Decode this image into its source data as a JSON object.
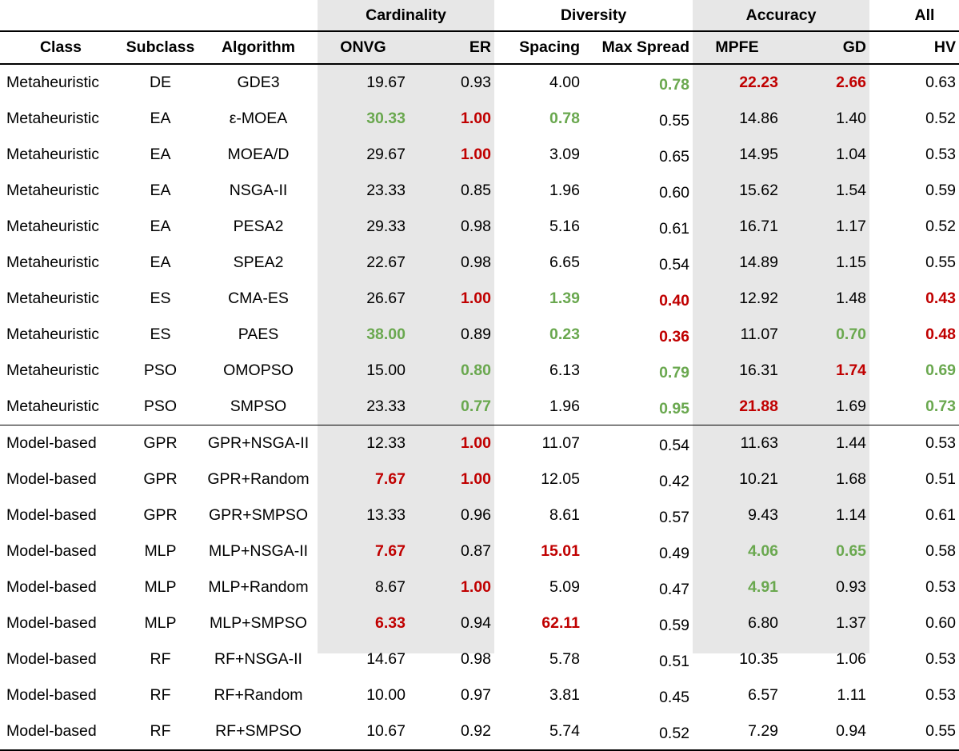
{
  "header": {
    "groups": {
      "cardinality": "Cardinality",
      "diversity": "Diversity",
      "accuracy": "Accuracy",
      "all": "All"
    },
    "columns": {
      "class": "Class",
      "subclass": "Subclass",
      "algorithm": "Algorithm",
      "onvg": "ONVG",
      "er": "ER",
      "spacing": "Spacing",
      "max_spread": "Max Spread",
      "mpfe": "MPFE",
      "gd": "GD",
      "hv": "HV"
    }
  },
  "colors": {
    "best": "#6aa84f",
    "worst": "#c00000",
    "shade": "#e7e7e7"
  },
  "rows": [
    {
      "class": "Metaheuristic",
      "subclass": "DE",
      "algorithm": "GDE3",
      "onvg": {
        "v": "19.67"
      },
      "er": {
        "v": "0.93"
      },
      "spacing": {
        "v": "4.00"
      },
      "max_spread": {
        "v": "0.78",
        "s": "best"
      },
      "mpfe": {
        "v": "22.23",
        "s": "worst"
      },
      "gd": {
        "v": "2.66",
        "s": "worst"
      },
      "hv": {
        "v": "0.63"
      }
    },
    {
      "class": "Metaheuristic",
      "subclass": "EA",
      "algorithm": "ε-MOEA",
      "onvg": {
        "v": "30.33",
        "s": "best"
      },
      "er": {
        "v": "1.00",
        "s": "worst"
      },
      "spacing": {
        "v": "0.78",
        "s": "best"
      },
      "max_spread": {
        "v": "0.55"
      },
      "mpfe": {
        "v": "14.86"
      },
      "gd": {
        "v": "1.40"
      },
      "hv": {
        "v": "0.52"
      }
    },
    {
      "class": "Metaheuristic",
      "subclass": "EA",
      "algorithm": "MOEA/D",
      "onvg": {
        "v": "29.67"
      },
      "er": {
        "v": "1.00",
        "s": "worst"
      },
      "spacing": {
        "v": "3.09"
      },
      "max_spread": {
        "v": "0.65"
      },
      "mpfe": {
        "v": "14.95"
      },
      "gd": {
        "v": "1.04"
      },
      "hv": {
        "v": "0.53"
      }
    },
    {
      "class": "Metaheuristic",
      "subclass": "EA",
      "algorithm": "NSGA-II",
      "onvg": {
        "v": "23.33"
      },
      "er": {
        "v": "0.85"
      },
      "spacing": {
        "v": "1.96"
      },
      "max_spread": {
        "v": "0.60"
      },
      "mpfe": {
        "v": "15.62"
      },
      "gd": {
        "v": "1.54"
      },
      "hv": {
        "v": "0.59"
      }
    },
    {
      "class": "Metaheuristic",
      "subclass": "EA",
      "algorithm": "PESA2",
      "onvg": {
        "v": "29.33"
      },
      "er": {
        "v": "0.98"
      },
      "spacing": {
        "v": "5.16"
      },
      "max_spread": {
        "v": "0.61"
      },
      "mpfe": {
        "v": "16.71"
      },
      "gd": {
        "v": "1.17"
      },
      "hv": {
        "v": "0.52"
      }
    },
    {
      "class": "Metaheuristic",
      "subclass": "EA",
      "algorithm": "SPEA2",
      "onvg": {
        "v": "22.67"
      },
      "er": {
        "v": "0.98"
      },
      "spacing": {
        "v": "6.65"
      },
      "max_spread": {
        "v": "0.54"
      },
      "mpfe": {
        "v": "14.89"
      },
      "gd": {
        "v": "1.15"
      },
      "hv": {
        "v": "0.55"
      }
    },
    {
      "class": "Metaheuristic",
      "subclass": "ES",
      "algorithm": "CMA-ES",
      "onvg": {
        "v": "26.67"
      },
      "er": {
        "v": "1.00",
        "s": "worst"
      },
      "spacing": {
        "v": "1.39",
        "s": "best"
      },
      "max_spread": {
        "v": "0.40",
        "s": "worst"
      },
      "mpfe": {
        "v": "12.92"
      },
      "gd": {
        "v": "1.48"
      },
      "hv": {
        "v": "0.43",
        "s": "worst"
      }
    },
    {
      "class": "Metaheuristic",
      "subclass": "ES",
      "algorithm": "PAES",
      "onvg": {
        "v": "38.00",
        "s": "best"
      },
      "er": {
        "v": "0.89"
      },
      "spacing": {
        "v": "0.23",
        "s": "best"
      },
      "max_spread": {
        "v": "0.36",
        "s": "worst"
      },
      "mpfe": {
        "v": "11.07"
      },
      "gd": {
        "v": "0.70",
        "s": "best"
      },
      "hv": {
        "v": "0.48",
        "s": "worst"
      }
    },
    {
      "class": "Metaheuristic",
      "subclass": "PSO",
      "algorithm": "OMOPSO",
      "onvg": {
        "v": "15.00"
      },
      "er": {
        "v": "0.80",
        "s": "best"
      },
      "spacing": {
        "v": "6.13"
      },
      "max_spread": {
        "v": "0.79",
        "s": "best"
      },
      "mpfe": {
        "v": "16.31"
      },
      "gd": {
        "v": "1.74",
        "s": "worst"
      },
      "hv": {
        "v": "0.69",
        "s": "best"
      }
    },
    {
      "class": "Metaheuristic",
      "subclass": "PSO",
      "algorithm": "SMPSO",
      "onvg": {
        "v": "23.33"
      },
      "er": {
        "v": "0.77",
        "s": "best"
      },
      "spacing": {
        "v": "1.96"
      },
      "max_spread": {
        "v": "0.95",
        "s": "best"
      },
      "mpfe": {
        "v": "21.88",
        "s": "worst"
      },
      "gd": {
        "v": "1.69"
      },
      "hv": {
        "v": "0.73",
        "s": "best"
      }
    },
    {
      "class": "Model-based",
      "subclass": "GPR",
      "algorithm": "GPR+NSGA-II",
      "sep": true,
      "onvg": {
        "v": "12.33"
      },
      "er": {
        "v": "1.00",
        "s": "worst"
      },
      "spacing": {
        "v": "11.07"
      },
      "max_spread": {
        "v": "0.54"
      },
      "mpfe": {
        "v": "11.63"
      },
      "gd": {
        "v": "1.44"
      },
      "hv": {
        "v": "0.53"
      }
    },
    {
      "class": "Model-based",
      "subclass": "GPR",
      "algorithm": "GPR+Random",
      "onvg": {
        "v": "7.67",
        "s": "worst"
      },
      "er": {
        "v": "1.00",
        "s": "worst"
      },
      "spacing": {
        "v": "12.05"
      },
      "max_spread": {
        "v": "0.42"
      },
      "mpfe": {
        "v": "10.21"
      },
      "gd": {
        "v": "1.68"
      },
      "hv": {
        "v": "0.51"
      }
    },
    {
      "class": "Model-based",
      "subclass": "GPR",
      "algorithm": "GPR+SMPSO",
      "onvg": {
        "v": "13.33"
      },
      "er": {
        "v": "0.96"
      },
      "spacing": {
        "v": "8.61"
      },
      "max_spread": {
        "v": "0.57"
      },
      "mpfe": {
        "v": "9.43"
      },
      "gd": {
        "v": "1.14"
      },
      "hv": {
        "v": "0.61"
      }
    },
    {
      "class": "Model-based",
      "subclass": "MLP",
      "algorithm": "MLP+NSGA-II",
      "onvg": {
        "v": "7.67",
        "s": "worst"
      },
      "er": {
        "v": "0.87"
      },
      "spacing": {
        "v": "15.01",
        "s": "worst"
      },
      "max_spread": {
        "v": "0.49"
      },
      "mpfe": {
        "v": "4.06",
        "s": "best"
      },
      "gd": {
        "v": "0.65",
        "s": "best"
      },
      "hv": {
        "v": "0.58"
      }
    },
    {
      "class": "Model-based",
      "subclass": "MLP",
      "algorithm": "MLP+Random",
      "onvg": {
        "v": "8.67"
      },
      "er": {
        "v": "1.00",
        "s": "worst"
      },
      "spacing": {
        "v": "5.09"
      },
      "max_spread": {
        "v": "0.47"
      },
      "mpfe": {
        "v": "4.91",
        "s": "best"
      },
      "gd": {
        "v": "0.93"
      },
      "hv": {
        "v": "0.53"
      }
    },
    {
      "class": "Model-based",
      "subclass": "MLP",
      "algorithm": "MLP+SMPSO",
      "onvg": {
        "v": "6.33",
        "s": "worst"
      },
      "er": {
        "v": "0.94"
      },
      "spacing": {
        "v": "62.11",
        "s": "worst"
      },
      "max_spread": {
        "v": "0.59"
      },
      "mpfe": {
        "v": "6.80"
      },
      "gd": {
        "v": "1.37"
      },
      "hv": {
        "v": "0.60"
      }
    },
    {
      "class": "Model-based",
      "subclass": "RF",
      "algorithm": "RF+NSGA-II",
      "onvg": {
        "v": "14.67"
      },
      "er": {
        "v": "0.98"
      },
      "spacing": {
        "v": "5.78"
      },
      "max_spread": {
        "v": "0.51"
      },
      "mpfe": {
        "v": "10.35"
      },
      "gd": {
        "v": "1.06"
      },
      "hv": {
        "v": "0.53"
      }
    },
    {
      "class": "Model-based",
      "subclass": "RF",
      "algorithm": "RF+Random",
      "onvg": {
        "v": "10.00"
      },
      "er": {
        "v": "0.97"
      },
      "spacing": {
        "v": "3.81"
      },
      "max_spread": {
        "v": "0.45"
      },
      "mpfe": {
        "v": "6.57"
      },
      "gd": {
        "v": "1.11"
      },
      "hv": {
        "v": "0.53"
      }
    },
    {
      "class": "Model-based",
      "subclass": "RF",
      "algorithm": "RF+SMPSO",
      "onvg": {
        "v": "10.67"
      },
      "er": {
        "v": "0.92"
      },
      "spacing": {
        "v": "5.74"
      },
      "max_spread": {
        "v": "0.52"
      },
      "mpfe": {
        "v": "7.29"
      },
      "gd": {
        "v": "0.94"
      },
      "hv": {
        "v": "0.55"
      }
    }
  ]
}
